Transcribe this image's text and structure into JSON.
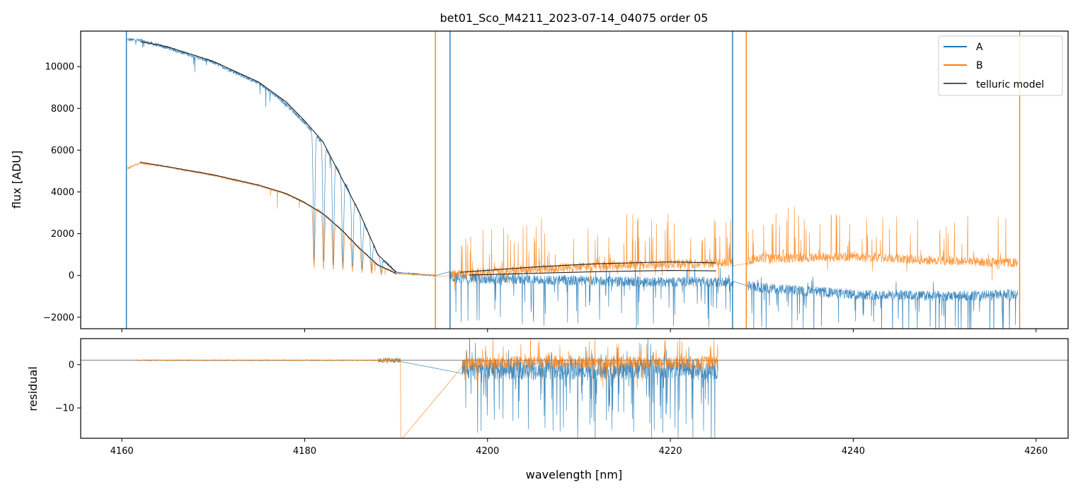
{
  "chart_data": [
    {
      "type": "line",
      "panel": "main",
      "title": "bet01_Sco_M4211_2023-07-14_04075  order 05",
      "xlabel": "",
      "ylabel": "flux [ADU]",
      "xlim": [
        4155.5,
        4263.5
      ],
      "ylim": [
        -2550,
        11700
      ],
      "xticks": [
        4160,
        4180,
        4200,
        4220,
        4240,
        4260
      ],
      "yticks": [
        -2000,
        0,
        2000,
        4000,
        6000,
        8000,
        10000
      ],
      "xtick_labels_visible": false,
      "legend": {
        "placement": "top-right",
        "entries": [
          {
            "label": "A",
            "color": "#1f77b4"
          },
          {
            "label": "B",
            "color": "#ff7f0e"
          },
          {
            "label": "telluric model",
            "color": "#555555"
          }
        ]
      },
      "series": [
        {
          "name": "A",
          "color": "#1f77b4",
          "description_points": [
            [
              4160.5,
              11300
            ],
            [
              4162,
              11250
            ],
            [
              4165,
              10900
            ],
            [
              4170,
              10200
            ],
            [
              4175,
              9200
            ],
            [
              4178,
              8200
            ],
            [
              4180,
              7300
            ],
            [
              4182,
              6300
            ],
            [
              4184,
              4800
            ],
            [
              4186,
              3000
            ],
            [
              4188,
              1000
            ],
            [
              4190,
              150
            ],
            [
              4194,
              0
            ],
            [
              4198,
              -150
            ],
            [
              4205,
              -200
            ],
            [
              4215,
              -300
            ],
            [
              4226,
              -300
            ],
            [
              4230,
              -600
            ],
            [
              4240,
              -900
            ],
            [
              4250,
              -1000
            ],
            [
              4258,
              -900
            ]
          ],
          "noise": "high beyond 4196 nm with deep negative telluric dips"
        },
        {
          "name": "B",
          "color": "#ff7f0e",
          "description_points": [
            [
              4160.5,
              5100
            ],
            [
              4162,
              5400
            ],
            [
              4165,
              5200
            ],
            [
              4170,
              4800
            ],
            [
              4175,
              4300
            ],
            [
              4178,
              3900
            ],
            [
              4180,
              3500
            ],
            [
              4182,
              3000
            ],
            [
              4184,
              2200
            ],
            [
              4186,
              1300
            ],
            [
              4188,
              500
            ],
            [
              4190,
              100
            ],
            [
              4194,
              0
            ],
            [
              4198,
              100
            ],
            [
              4205,
              300
            ],
            [
              4215,
              500
            ],
            [
              4226,
              600
            ],
            [
              4230,
              800
            ],
            [
              4240,
              900
            ],
            [
              4250,
              700
            ],
            [
              4258,
              600
            ]
          ],
          "noise": "high beyond 4196 nm with positive spikes up to ~3900"
        },
        {
          "name": "telluric model",
          "color": "#222222",
          "segments": [
            {
              "x": [
                4162,
                4165,
                4170,
                4175,
                4178,
                4180,
                4182,
                4184,
                4186,
                4188,
                4190
              ],
              "y": [
                11200,
                10950,
                10250,
                9250,
                8300,
                7400,
                6400,
                4700,
                3000,
                1000,
                150
              ]
            },
            {
              "x": [
                4162,
                4165,
                4170,
                4175,
                4178,
                4180,
                4182,
                4184,
                4186,
                4188,
                4190
              ],
              "y": [
                5420,
                5200,
                4820,
                4320,
                3920,
                3480,
                2950,
                2200,
                1300,
                500,
                100
              ]
            },
            {
              "x": [
                4197,
                4205,
                4212,
                4220,
                4225
              ],
              "y": [
                150,
                400,
                560,
                650,
                600
              ]
            },
            {
              "x": [
                4198,
                4205,
                4212,
                4220,
                4225
              ],
              "y": [
                20,
                100,
                180,
                240,
                220
              ]
            }
          ]
        }
      ],
      "spikes": [
        {
          "x": 4160.5,
          "color": "#1f77b4"
        },
        {
          "x": 4194.3,
          "color": "#ff7f0e"
        },
        {
          "x": 4195.9,
          "color": "#1f77b4"
        },
        {
          "x": 4226.8,
          "color": "#1f77b4"
        },
        {
          "x": 4228.3,
          "color": "#ff7f0e"
        },
        {
          "x": 4258.2,
          "color": "#ff7f0e"
        }
      ]
    },
    {
      "type": "line",
      "panel": "residual",
      "title": "",
      "xlabel": "wavelength [nm]",
      "ylabel": "residual",
      "xlim": [
        4155.5,
        4263.5
      ],
      "ylim": [
        -17,
        6
      ],
      "xticks": [
        4160,
        4180,
        4200,
        4220,
        4240,
        4260
      ],
      "yticks": [
        -10,
        0
      ],
      "reference_line_y": 1,
      "series": [
        {
          "name": "A",
          "color": "#1f77b4",
          "x_range": [
            4161.5,
            4225.2
          ],
          "note": "flat near 1 up to 4190 nm, strongly negative noisy residuals 4198-4225 nm"
        },
        {
          "name": "B",
          "color": "#ff7f0e",
          "x_range": [
            4161.5,
            4225.2
          ],
          "note": "flat near 1 up to 4190 nm, noisy around 0 from 4197-4225 nm"
        }
      ]
    }
  ]
}
